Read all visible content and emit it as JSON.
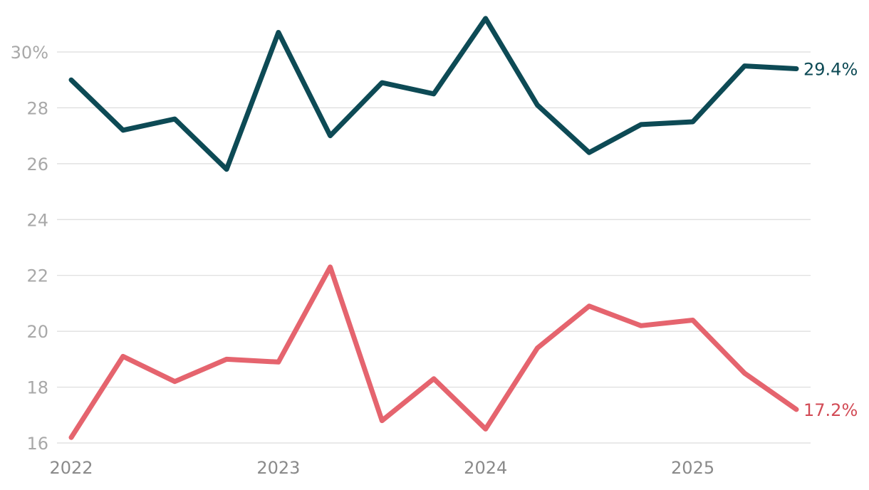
{
  "chart_data": {
    "type": "line",
    "title": "",
    "xlabel": "",
    "ylabel": "",
    "x_ticks": [
      "2022",
      "2023",
      "2024",
      "2025"
    ],
    "y_ticks": [
      "30%",
      "28",
      "26",
      "24",
      "22",
      "20",
      "18",
      "16"
    ],
    "y_tick_values": [
      30,
      28,
      26,
      24,
      22,
      20,
      18,
      16
    ],
    "ylim": [
      16,
      31.3
    ],
    "xlim": [
      "2022-Q1",
      "2025-Q3"
    ],
    "grid": true,
    "x": [
      "2022-Q1",
      "2022-Q2",
      "2022-Q3",
      "2022-Q4",
      "2023-Q1",
      "2023-Q2",
      "2023-Q3",
      "2023-Q4",
      "2024-Q1",
      "2024-Q2",
      "2024-Q3",
      "2024-Q4",
      "2025-Q1",
      "2025-Q2",
      "2025-Q3"
    ],
    "series": [
      {
        "color": "#0d4a55",
        "values": [
          29.0,
          27.2,
          27.6,
          25.8,
          30.7,
          27.0,
          28.9,
          28.5,
          31.2,
          28.1,
          26.4,
          27.4,
          27.5,
          29.5,
          29.4
        ],
        "end_label": "29.4%"
      },
      {
        "color": "#e5646e",
        "label_color": "#d24a55",
        "values": [
          16.2,
          19.1,
          18.2,
          19.0,
          18.9,
          22.3,
          16.8,
          18.3,
          16.5,
          19.4,
          20.9,
          20.2,
          20.4,
          18.5,
          17.2
        ],
        "end_label": "17.2%"
      }
    ]
  }
}
